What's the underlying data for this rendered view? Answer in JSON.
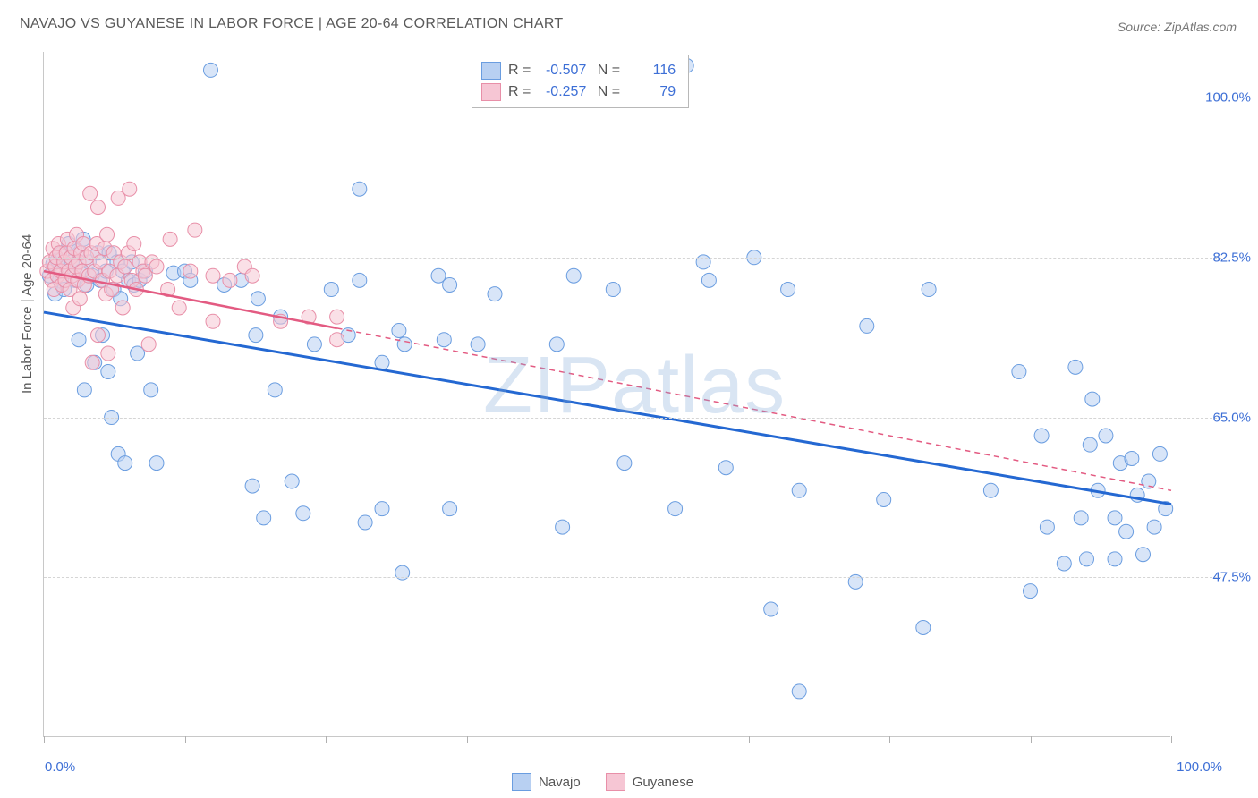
{
  "title": "NAVAJO VS GUYANESE IN LABOR FORCE | AGE 20-64 CORRELATION CHART",
  "source": "Source: ZipAtlas.com",
  "yaxis_title": "In Labor Force | Age 20-64",
  "watermark": "ZIPatlas",
  "chart": {
    "type": "scatter",
    "background_color": "#ffffff",
    "grid_color": "#d5d5d5",
    "axis_color": "#c8c8c8",
    "xlim": [
      0,
      100
    ],
    "ylim": [
      30,
      105
    ],
    "xtick_label_min": "0.0%",
    "xtick_label_max": "100.0%",
    "xticks": [
      0,
      12.5,
      25,
      37.5,
      50,
      62.5,
      75,
      87.5,
      100
    ],
    "yticks": [
      {
        "v": 47.5,
        "label": "47.5%"
      },
      {
        "v": 65.0,
        "label": "65.0%"
      },
      {
        "v": 82.5,
        "label": "82.5%"
      },
      {
        "v": 100.0,
        "label": "100.0%"
      }
    ],
    "tick_label_color": "#3d6fd6",
    "tick_label_fontsize": 15,
    "title_fontsize": 16,
    "marker_radius": 8,
    "marker_opacity": 0.55,
    "series": [
      {
        "name": "Navajo",
        "fill_color": "#b8d0f2",
        "stroke_color": "#6a9de0",
        "trend_color": "#2468d2",
        "trend_width": 3,
        "trend_solid_extent": 100,
        "trend_start": [
          0,
          76.5
        ],
        "trend_end": [
          100,
          55.5
        ],
        "R": "-0.507",
        "N": "116",
        "points": [
          [
            0.5,
            80.5
          ],
          [
            0.8,
            81.8
          ],
          [
            1,
            78.5
          ],
          [
            1.2,
            82.2
          ],
          [
            1.4,
            80
          ],
          [
            1.6,
            83
          ],
          [
            1.8,
            79
          ],
          [
            2,
            81.5
          ],
          [
            2.2,
            84
          ],
          [
            2.5,
            82
          ],
          [
            2.8,
            80
          ],
          [
            3,
            83.2
          ],
          [
            3.1,
            73.5
          ],
          [
            3.3,
            81
          ],
          [
            3.5,
            84.5
          ],
          [
            3.6,
            68
          ],
          [
            3.8,
            79.5
          ],
          [
            4,
            82
          ],
          [
            4.3,
            80.5
          ],
          [
            4.5,
            71
          ],
          [
            4.8,
            83
          ],
          [
            5,
            80
          ],
          [
            5.2,
            74
          ],
          [
            5.5,
            81
          ],
          [
            5.7,
            70
          ],
          [
            5.8,
            83
          ],
          [
            6,
            65
          ],
          [
            6.2,
            79
          ],
          [
            6.5,
            82
          ],
          [
            6.6,
            61
          ],
          [
            6.8,
            78
          ],
          [
            7,
            81
          ],
          [
            7.2,
            60
          ],
          [
            7.5,
            80
          ],
          [
            7.8,
            82
          ],
          [
            8,
            79.5
          ],
          [
            8.3,
            72
          ],
          [
            8.5,
            80
          ],
          [
            9,
            81
          ],
          [
            9.5,
            68
          ],
          [
            10,
            60
          ],
          [
            11.5,
            80.8
          ],
          [
            12.5,
            81
          ],
          [
            13,
            80
          ],
          [
            14.8,
            103
          ],
          [
            16,
            79.5
          ],
          [
            17.5,
            80
          ],
          [
            18.5,
            57.5
          ],
          [
            18.8,
            74
          ],
          [
            19,
            78
          ],
          [
            19.5,
            54
          ],
          [
            20.5,
            68
          ],
          [
            21,
            76
          ],
          [
            22,
            58
          ],
          [
            23,
            54.5
          ],
          [
            24,
            73
          ],
          [
            25.5,
            79
          ],
          [
            27,
            74
          ],
          [
            28,
            90
          ],
          [
            28,
            80
          ],
          [
            28.5,
            53.5
          ],
          [
            30,
            55
          ],
          [
            30,
            71
          ],
          [
            31.5,
            74.5
          ],
          [
            31.8,
            48
          ],
          [
            32,
            73
          ],
          [
            35,
            80.5
          ],
          [
            35.5,
            73.5
          ],
          [
            36,
            55
          ],
          [
            36,
            79.5
          ],
          [
            38.5,
            73
          ],
          [
            40,
            78.5
          ],
          [
            45.5,
            73
          ],
          [
            46,
            53
          ],
          [
            47,
            80.5
          ],
          [
            50.5,
            79
          ],
          [
            51.5,
            60
          ],
          [
            56,
            55
          ],
          [
            57,
            103.5
          ],
          [
            58.5,
            82
          ],
          [
            59,
            80
          ],
          [
            60.5,
            59.5
          ],
          [
            63,
            82.5
          ],
          [
            64.5,
            44
          ],
          [
            66,
            79
          ],
          [
            67,
            57
          ],
          [
            67,
            35
          ],
          [
            72,
            47
          ],
          [
            73,
            75
          ],
          [
            74.5,
            56
          ],
          [
            78,
            42
          ],
          [
            78.5,
            79
          ],
          [
            84,
            57
          ],
          [
            86.5,
            70
          ],
          [
            87.5,
            46
          ],
          [
            88.5,
            63
          ],
          [
            89,
            53
          ],
          [
            90.5,
            49
          ],
          [
            91.5,
            70.5
          ],
          [
            92,
            54
          ],
          [
            92.5,
            49.5
          ],
          [
            92.8,
            62
          ],
          [
            93,
            67
          ],
          [
            93.5,
            57
          ],
          [
            94.2,
            63
          ],
          [
            95,
            54
          ],
          [
            95,
            49.5
          ],
          [
            95.5,
            60
          ],
          [
            96,
            52.5
          ],
          [
            96.5,
            60.5
          ],
          [
            97,
            56.5
          ],
          [
            97.5,
            50
          ],
          [
            98,
            58
          ],
          [
            98.5,
            53
          ],
          [
            99,
            61
          ],
          [
            99.5,
            55
          ]
        ]
      },
      {
        "name": "Guyanese",
        "fill_color": "#f6c6d4",
        "stroke_color": "#e88fa8",
        "trend_color": "#e35b82",
        "trend_width": 2.5,
        "trend_solid_extent": 26,
        "trend_start": [
          0,
          81
        ],
        "trend_end": [
          100,
          57
        ],
        "R": "-0.257",
        "N": "79",
        "points": [
          [
            0.3,
            81
          ],
          [
            0.5,
            82
          ],
          [
            0.7,
            80
          ],
          [
            0.8,
            83.5
          ],
          [
            0.9,
            79
          ],
          [
            1,
            81.5
          ],
          [
            1.1,
            82.5
          ],
          [
            1.2,
            80.5
          ],
          [
            1.3,
            84
          ],
          [
            1.4,
            83
          ],
          [
            1.5,
            81
          ],
          [
            1.6,
            79.5
          ],
          [
            1.8,
            82
          ],
          [
            1.9,
            80
          ],
          [
            2,
            83
          ],
          [
            2.1,
            84.5
          ],
          [
            2.2,
            81
          ],
          [
            2.3,
            79
          ],
          [
            2.4,
            82.5
          ],
          [
            2.5,
            80.5
          ],
          [
            2.6,
            77
          ],
          [
            2.7,
            83.5
          ],
          [
            2.8,
            81.5
          ],
          [
            2.9,
            85
          ],
          [
            3,
            80
          ],
          [
            3.1,
            82
          ],
          [
            3.2,
            78
          ],
          [
            3.3,
            83
          ],
          [
            3.4,
            81
          ],
          [
            3.5,
            84
          ],
          [
            3.6,
            79.5
          ],
          [
            3.8,
            82.5
          ],
          [
            4,
            80.5
          ],
          [
            4.1,
            89.5
          ],
          [
            4.2,
            83
          ],
          [
            4.3,
            71
          ],
          [
            4.5,
            81
          ],
          [
            4.7,
            84
          ],
          [
            4.8,
            88
          ],
          [
            4.8,
            74
          ],
          [
            5,
            82
          ],
          [
            5.2,
            80
          ],
          [
            5.4,
            83.5
          ],
          [
            5.5,
            78.5
          ],
          [
            5.6,
            85
          ],
          [
            5.7,
            72
          ],
          [
            5.8,
            81
          ],
          [
            6,
            79
          ],
          [
            6.2,
            83
          ],
          [
            6.5,
            80.5
          ],
          [
            6.6,
            89
          ],
          [
            6.8,
            82
          ],
          [
            7,
            77
          ],
          [
            7.2,
            81.5
          ],
          [
            7.5,
            83
          ],
          [
            7.6,
            90
          ],
          [
            7.8,
            80
          ],
          [
            8,
            84
          ],
          [
            8.2,
            79
          ],
          [
            8.5,
            82
          ],
          [
            8.8,
            81
          ],
          [
            9,
            80.5
          ],
          [
            9.3,
            73
          ],
          [
            9.6,
            82
          ],
          [
            10,
            81.5
          ],
          [
            11,
            79
          ],
          [
            11.2,
            84.5
          ],
          [
            12,
            77
          ],
          [
            13,
            81
          ],
          [
            13.4,
            85.5
          ],
          [
            15,
            80.5
          ],
          [
            15,
            75.5
          ],
          [
            16.5,
            80
          ],
          [
            17.8,
            81.5
          ],
          [
            18.5,
            80.5
          ],
          [
            21,
            75.5
          ],
          [
            23.5,
            76
          ],
          [
            26,
            76
          ],
          [
            26,
            73.5
          ]
        ]
      }
    ]
  },
  "stats_box": {
    "swatch_border": "#999"
  },
  "legend_bottom": [
    {
      "label": "Navajo",
      "fill": "#b8d0f2",
      "stroke": "#6a9de0"
    },
    {
      "label": "Guyanese",
      "fill": "#f6c6d4",
      "stroke": "#e88fa8"
    }
  ]
}
